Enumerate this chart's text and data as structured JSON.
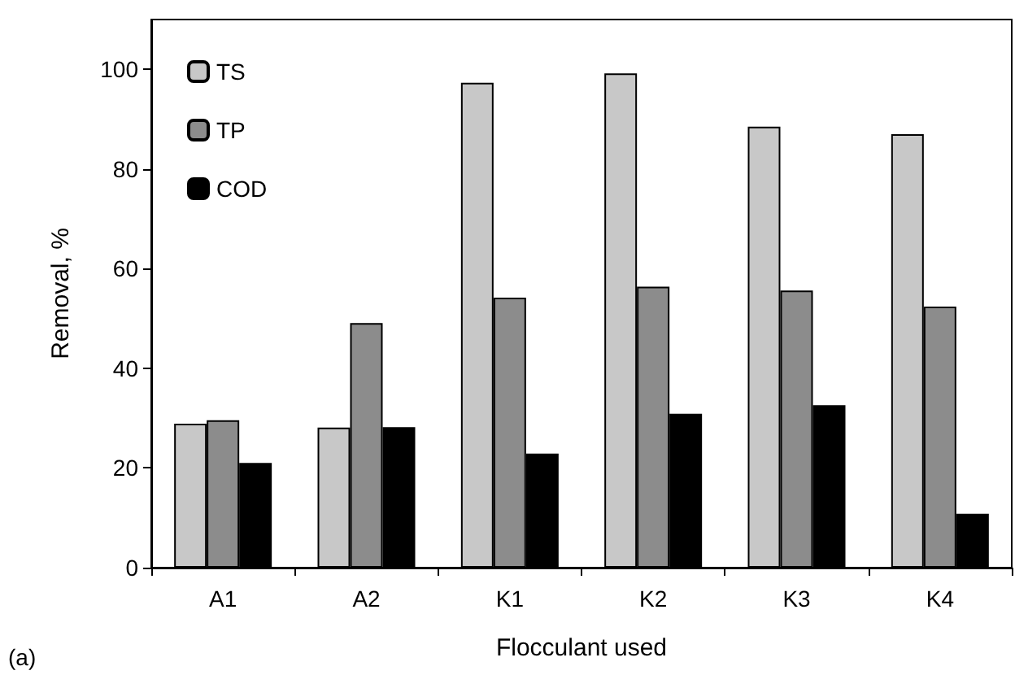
{
  "chart_data": {
    "type": "bar",
    "xlabel": "Flocculant used",
    "ylabel": "Removal, %",
    "categories": [
      "A1",
      "A2",
      "K1",
      "K2",
      "K3",
      "K4"
    ],
    "series": [
      {
        "name": "TS",
        "color": "#c8c8c8",
        "values": [
          28.9,
          28.1,
          97.3,
          99.2,
          88.5,
          87.0
        ]
      },
      {
        "name": "TP",
        "color": "#8c8c8c",
        "values": [
          29.6,
          49.1,
          54.2,
          56.4,
          55.6,
          52.4
        ]
      },
      {
        "name": "COD",
        "color": "#000000",
        "values": [
          21.0,
          28.2,
          22.9,
          30.9,
          32.6,
          10.8
        ]
      }
    ],
    "ylim": [
      0,
      110
    ],
    "yticks": [
      0,
      20,
      40,
      60,
      80,
      100
    ],
    "grid": false,
    "legend": "top left",
    "annotations": [
      "(a)"
    ]
  }
}
